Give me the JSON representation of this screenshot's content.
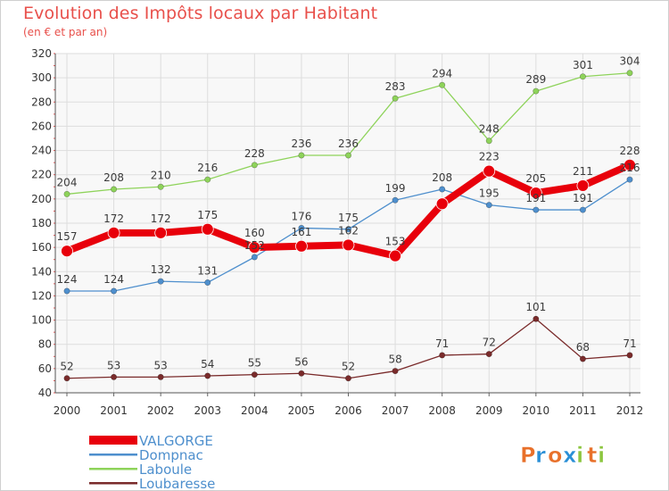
{
  "header": {
    "title": "Evolution des Impôts locaux par Habitant",
    "subtitle": "(en € et par an)"
  },
  "brand": {
    "letters": [
      "P",
      "r",
      "o",
      "x",
      "i",
      "t",
      "i"
    ],
    "colors": [
      "#e8702a",
      "#2a8fd6",
      "#e8702a",
      "#2a8fd6",
      "#8cc63f",
      "#e8702a",
      "#8cc63f"
    ]
  },
  "chart_data": {
    "type": "line",
    "title": "Evolution des Impôts locaux par Habitant",
    "subtitle": "(en € et par an)",
    "xlabel": "",
    "ylabel": "",
    "x": [
      "2000",
      "2001",
      "2002",
      "2003",
      "2004",
      "2005",
      "2006",
      "2007",
      "2008",
      "2009",
      "2010",
      "2011",
      "2012"
    ],
    "ylim": [
      40,
      320
    ],
    "yticks": [
      40,
      60,
      80,
      100,
      120,
      140,
      160,
      180,
      200,
      220,
      240,
      260,
      280,
      300,
      320
    ],
    "grid": true,
    "legend_position": "bottom-left",
    "series": [
      {
        "name": "VALGORGE",
        "color": "#e8000b",
        "values": [
          157,
          172,
          172,
          175,
          160,
          161,
          162,
          153,
          196,
          223,
          205,
          211,
          228
        ],
        "labels": [
          "157",
          "172",
          "172",
          "175",
          "160",
          "161",
          "162",
          "153",
          "",
          "223",
          "205",
          "211",
          "228"
        ]
      },
      {
        "name": "Dompnac",
        "color": "#4e8fcd",
        "values": [
          124,
          124,
          132,
          131,
          152,
          176,
          175,
          199,
          208,
          195,
          191,
          191,
          216
        ],
        "labels": [
          "124",
          "124",
          "132",
          "131",
          "152",
          "176",
          "175",
          "199",
          "208",
          "195",
          "191",
          "191",
          "216"
        ]
      },
      {
        "name": "Laboule",
        "color": "#8ed35a",
        "values": [
          204,
          208,
          210,
          216,
          228,
          236,
          236,
          283,
          294,
          248,
          289,
          301,
          304
        ],
        "labels": [
          "204",
          "208",
          "210",
          "216",
          "228",
          "236",
          "236",
          "283",
          "294",
          "248",
          "289",
          "301",
          "304"
        ]
      },
      {
        "name": "Loubaresse",
        "color": "#7a2b2b",
        "values": [
          52,
          53,
          53,
          54,
          55,
          56,
          52,
          58,
          71,
          72,
          101,
          68,
          71
        ],
        "labels": [
          "52",
          "53",
          "53",
          "54",
          "55",
          "56",
          "52",
          "58",
          "71",
          "72",
          "101",
          "68",
          "71"
        ]
      }
    ]
  }
}
